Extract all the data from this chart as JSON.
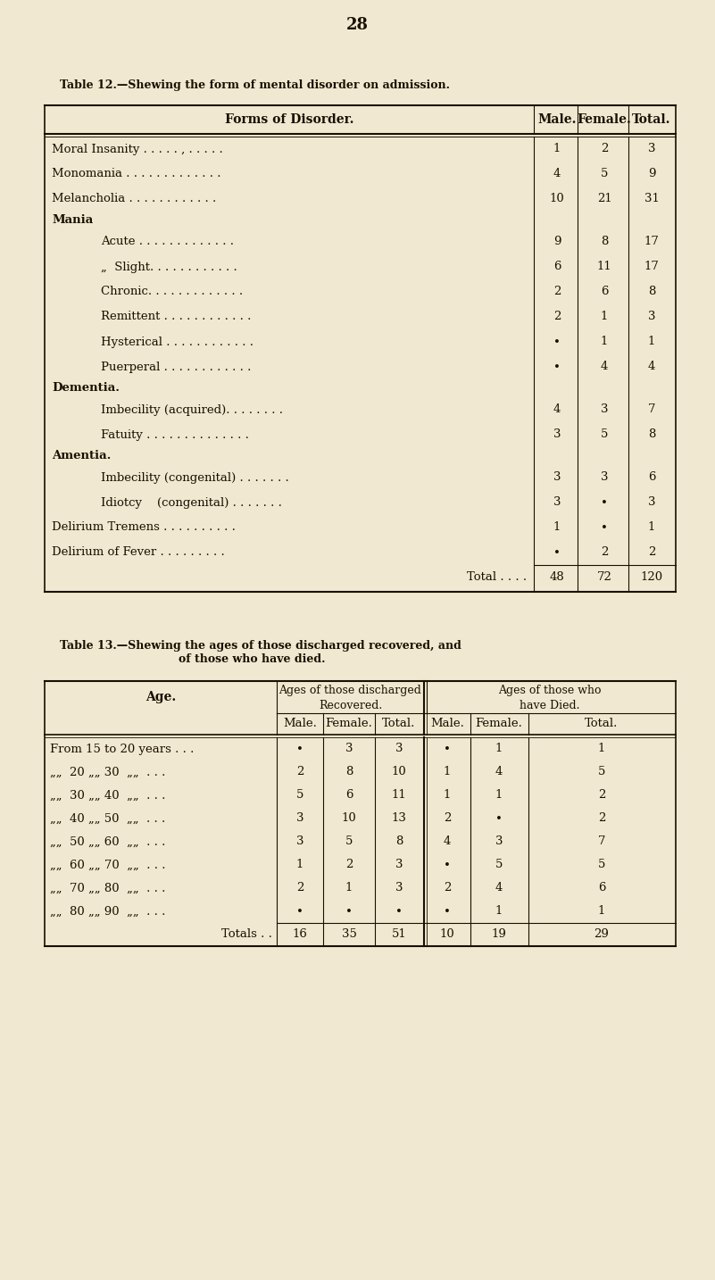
{
  "page_number": "28",
  "bg_color": "#f0e8d0",
  "text_color": "#1a0f00",
  "table12_title": "Table 12.—Shewing the form of mental disorder on admission.",
  "table12_rows": [
    {
      "label": "Moral Insanity . . . . . , . . . . .",
      "indent": 0,
      "male": "1",
      "female": "2",
      "total": "3",
      "section_header": false
    },
    {
      "label": "Monomania . . . . . . . . . . . . .",
      "indent": 0,
      "male": "4",
      "female": "5",
      "total": "9",
      "section_header": false
    },
    {
      "label": "Melancholia . . . . . . . . . . . .",
      "indent": 0,
      "male": "10",
      "female": "21",
      "total": "31",
      "section_header": false
    },
    {
      "label": "Mania",
      "indent": 0,
      "male": "",
      "female": "",
      "total": "",
      "section_header": true
    },
    {
      "label": "Acute . . . . . . . . . . . . .",
      "indent": 1,
      "male": "9",
      "female": "8",
      "total": "17",
      "section_header": false
    },
    {
      "label": "„  Slight. . . . . . . . . . . .",
      "indent": 1,
      "male": "6",
      "female": "11",
      "total": "17",
      "section_header": false
    },
    {
      "label": "Chronic. . . . . . . . . . . . .",
      "indent": 1,
      "male": "2",
      "female": "6",
      "total": "8",
      "section_header": false
    },
    {
      "label": "Remittent . . . . . . . . . . . .",
      "indent": 1,
      "male": "2",
      "female": "1",
      "total": "3",
      "section_header": false
    },
    {
      "label": "Hysterical . . . . . . . . . . . .",
      "indent": 1,
      "male": "•",
      "female": "1",
      "total": "1",
      "section_header": false
    },
    {
      "label": "Puerperal . . . . . . . . . . . .",
      "indent": 1,
      "male": "•",
      "female": "4",
      "total": "4",
      "section_header": false
    },
    {
      "label": "Dementia.",
      "indent": 0,
      "male": "",
      "female": "",
      "total": "",
      "section_header": true
    },
    {
      "label": "Imbecility (acquired). . . . . . . .",
      "indent": 1,
      "male": "4",
      "female": "3",
      "total": "7",
      "section_header": false
    },
    {
      "label": "Fatuity . . . . . . . . . . . . . .",
      "indent": 1,
      "male": "3",
      "female": "5",
      "total": "8",
      "section_header": false
    },
    {
      "label": "Amentia.",
      "indent": 0,
      "male": "",
      "female": "",
      "total": "",
      "section_header": true
    },
    {
      "label": "Imbecility (congenital) . . . . . . .",
      "indent": 1,
      "male": "3",
      "female": "3",
      "total": "6",
      "section_header": false
    },
    {
      "label": "Idiotcy    (congenital) . . . . . . .",
      "indent": 1,
      "male": "3",
      "female": "•",
      "total": "3",
      "section_header": false
    },
    {
      "label": "Delirium Tremens . . . . . . . . . .",
      "indent": 0,
      "male": "1",
      "female": "•",
      "total": "1",
      "section_header": false
    },
    {
      "label": "Delirium of Fever . . . . . . . . .",
      "indent": 0,
      "male": "•",
      "female": "2",
      "total": "2",
      "section_header": false
    },
    {
      "label": "Total . . . .",
      "indent": 0,
      "male": "48",
      "female": "72",
      "total": "120",
      "total_row": true
    }
  ],
  "table13_title_line1": "Table 13.—Shewing the ages of those discharged recovered, and",
  "table13_title_line2": "of those who have died.",
  "table13_rows": [
    {
      "label": "From 15 to 20 years . . .",
      "rm": "•",
      "rf": "3",
      "rt": "3",
      "dm": "•",
      "df": "1",
      "dt": "1"
    },
    {
      "label": "„„  20 „„ 30  „„  . . .",
      "rm": "2",
      "rf": "8",
      "rt": "10",
      "dm": "1",
      "df": "4",
      "dt": "5"
    },
    {
      "label": "„„  30 „„ 40  „„  . . .",
      "rm": "5",
      "rf": "6",
      "rt": "11",
      "dm": "1",
      "df": "1",
      "dt": "2"
    },
    {
      "label": "„„  40 „„ 50  „„  . . .",
      "rm": "3",
      "rf": "10",
      "rt": "13",
      "dm": "2",
      "df": "•",
      "dt": "2"
    },
    {
      "label": "„„  50 „„ 60  „„  . . .",
      "rm": "3",
      "rf": "5",
      "rt": "8",
      "dm": "4",
      "df": "3",
      "dt": "7"
    },
    {
      "label": "„„  60 „„ 70  „„  . . .",
      "rm": "1",
      "rf": "2",
      "rt": "3",
      "dm": "•",
      "df": "5",
      "dt": "5"
    },
    {
      "label": "„„  70 „„ 80  „„  . . .",
      "rm": "2",
      "rf": "1",
      "rt": "3",
      "dm": "2",
      "df": "4",
      "dt": "6"
    },
    {
      "label": "„„  80 „„ 90  „„  . . .",
      "rm": "•",
      "rf": "•",
      "rt": "•",
      "dm": "•",
      "df": "1",
      "dt": "1"
    },
    {
      "label": "Totals . .",
      "rm": "16",
      "rf": "35",
      "rt": "51",
      "dm": "10",
      "df": "19",
      "dt": "29",
      "total_row": true
    }
  ]
}
